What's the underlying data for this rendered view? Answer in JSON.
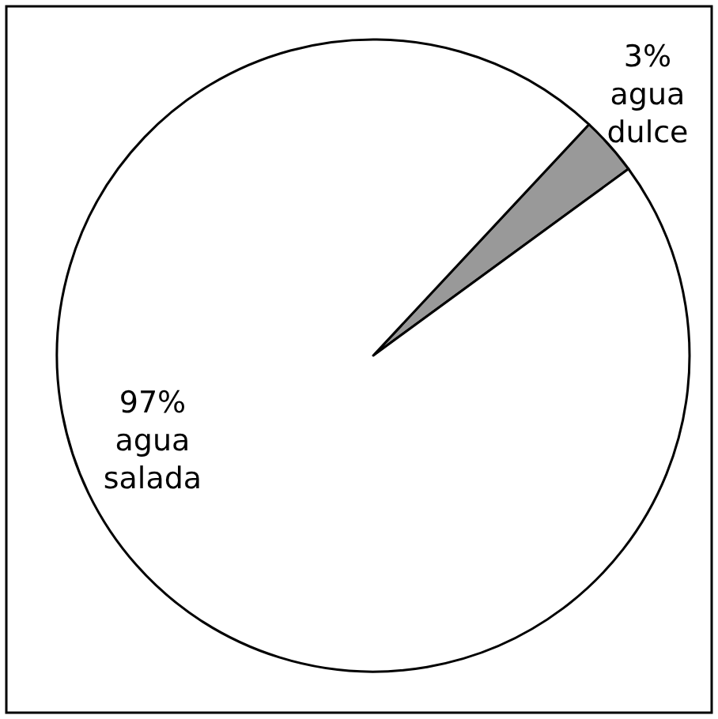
{
  "chart_data": {
    "type": "pie",
    "categories": [
      "agua dulce",
      "agua salada"
    ],
    "values": [
      3,
      97
    ],
    "colors": [
      "#999999",
      "#ffffff"
    ],
    "value_labels": [
      "3%",
      "97%"
    ]
  }
}
